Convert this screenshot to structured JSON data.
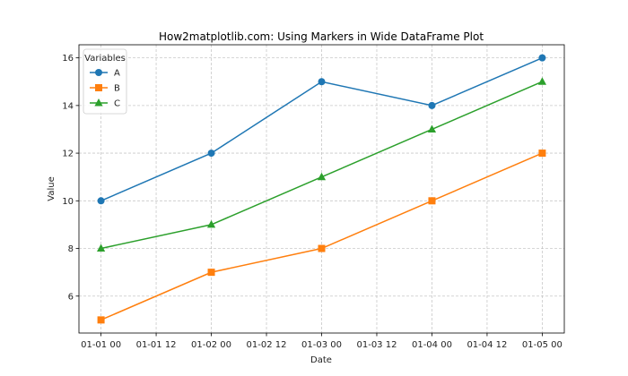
{
  "chart_data": {
    "type": "line",
    "title": "How2matplotlib.com: Using Markers in Wide DataFrame Plot",
    "xlabel": "Date",
    "ylabel": "Value",
    "x": [
      "2023-01-01",
      "2023-01-02",
      "2023-01-03",
      "2023-01-04",
      "2023-01-05"
    ],
    "x_tick_labels": [
      "01-01 00",
      "01-01 12",
      "01-02 00",
      "01-02 12",
      "01-03 00",
      "01-03 12",
      "01-04 00",
      "01-04 12",
      "01-05 00"
    ],
    "xlim": [
      -0.2,
      4.2
    ],
    "y_ticks": [
      6,
      8,
      10,
      12,
      14,
      16
    ],
    "ylim": [
      4.45,
      16.55
    ],
    "grid": true,
    "grid_style": "dashed",
    "legend_title": "Variables",
    "legend_position": "upper-left",
    "series": [
      {
        "name": "A",
        "values": [
          10,
          12,
          15,
          14,
          16
        ],
        "color": "#1f77b4",
        "marker": "circle"
      },
      {
        "name": "B",
        "values": [
          5,
          7,
          8,
          10,
          12
        ],
        "color": "#ff7f0e",
        "marker": "square"
      },
      {
        "name": "C",
        "values": [
          8,
          9,
          11,
          13,
          15
        ],
        "color": "#2ca02c",
        "marker": "triangle"
      }
    ]
  }
}
